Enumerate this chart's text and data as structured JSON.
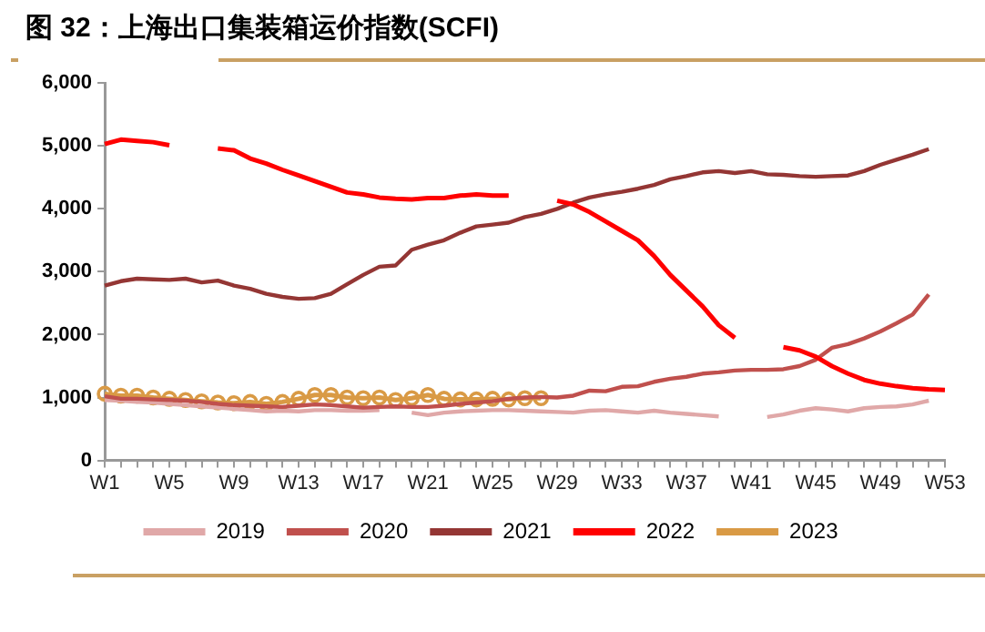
{
  "chart_data": {
    "type": "line",
    "title": "图 32：上海出口集装箱运价指数(SCFI)",
    "categories": [
      "W1",
      null,
      null,
      null,
      "W5",
      null,
      null,
      null,
      "W9",
      null,
      null,
      null,
      "W13",
      null,
      null,
      null,
      "W17",
      null,
      null,
      null,
      "W21",
      null,
      null,
      null,
      "W25",
      null,
      null,
      null,
      "W29",
      null,
      null,
      null,
      "W33",
      null,
      null,
      null,
      "W37",
      null,
      null,
      null,
      "W41",
      null,
      null,
      null,
      "W45",
      null,
      null,
      null,
      "W49",
      null,
      null,
      null,
      "W53"
    ],
    "series": [
      {
        "name": "2019",
        "color": "#e0a8a8",
        "values": [
          960,
          950,
          930,
          920,
          900,
          880,
          860,
          840,
          820,
          800,
          780,
          790,
          780,
          800,
          800,
          790,
          790,
          800,
          null,
          760,
          720,
          760,
          780,
          790,
          800,
          800,
          790,
          780,
          770,
          760,
          790,
          800,
          780,
          760,
          790,
          760,
          740,
          720,
          700,
          null,
          null,
          690,
          730,
          790,
          830,
          810,
          780,
          830,
          850,
          860,
          890,
          950,
          null
        ]
      },
      {
        "name": "2020",
        "color": "#c0504d",
        "values": [
          1020,
          980,
          980,
          970,
          960,
          950,
          930,
          900,
          880,
          870,
          860,
          850,
          870,
          890,
          880,
          860,
          840,
          850,
          860,
          850,
          850,
          870,
          900,
          920,
          940,
          980,
          1000,
          1010,
          1000,
          1030,
          1110,
          1100,
          1170,
          1180,
          1250,
          1300,
          1330,
          1380,
          1400,
          1430,
          1440,
          1440,
          1450,
          1500,
          1600,
          1790,
          1850,
          1940,
          2050,
          2180,
          2320,
          2640,
          null
        ]
      },
      {
        "name": "2021",
        "color": "#943634",
        "values": [
          2780,
          2850,
          2890,
          2880,
          2870,
          2890,
          2830,
          2860,
          2780,
          2730,
          2650,
          2600,
          2570,
          2580,
          2650,
          2800,
          2950,
          3080,
          3100,
          3350,
          3430,
          3500,
          3620,
          3720,
          3750,
          3780,
          3870,
          3920,
          4000,
          4100,
          4180,
          4230,
          4270,
          4320,
          4380,
          4470,
          4520,
          4580,
          4600,
          4570,
          4600,
          4550,
          4540,
          4520,
          4510,
          4520,
          4530,
          4600,
          4700,
          4780,
          4860,
          4950,
          null
        ]
      },
      {
        "name": "2022",
        "color": "#ff0000",
        "values": [
          5030,
          5100,
          5080,
          5060,
          5010,
          null,
          null,
          4960,
          4930,
          4800,
          4720,
          4620,
          4530,
          4440,
          4350,
          4260,
          4230,
          4180,
          4160,
          4150,
          4170,
          4170,
          4210,
          4230,
          4210,
          4210,
          null,
          null,
          4130,
          4070,
          3950,
          3800,
          3650,
          3500,
          3250,
          2950,
          2700,
          2450,
          2150,
          1950,
          null,
          null,
          1800,
          1750,
          1650,
          1500,
          1380,
          1280,
          1220,
          1180,
          1150,
          1130,
          1120
        ]
      },
      {
        "name": "2023",
        "color": "#d99a45",
        "marker": "circle",
        "values": [
          1060,
          1030,
          1030,
          1000,
          980,
          960,
          940,
          920,
          910,
          930,
          900,
          930,
          980,
          1040,
          1040,
          1000,
          990,
          1000,
          960,
          990,
          1040,
          980,
          970,
          970,
          980,
          970,
          990,
          990,
          null,
          null,
          null,
          null,
          null,
          null,
          null,
          null,
          null,
          null,
          null,
          null,
          null,
          null,
          null,
          null,
          null,
          null,
          null,
          null,
          null,
          null,
          null,
          null,
          null
        ]
      }
    ],
    "ylim": [
      0,
      6000
    ],
    "yticks": [
      0,
      {
        "value": 1000,
        "label": "1,000"
      },
      {
        "value": 2000,
        "label": "2,000"
      },
      {
        "value": 3000,
        "label": "3,000"
      },
      {
        "value": 4000,
        "label": "4,000"
      },
      {
        "value": 5000,
        "label": "5,000"
      },
      {
        "value": 6000,
        "label": "6,000"
      }
    ],
    "grid": false,
    "legend": "bottom",
    "marker": "none"
  }
}
